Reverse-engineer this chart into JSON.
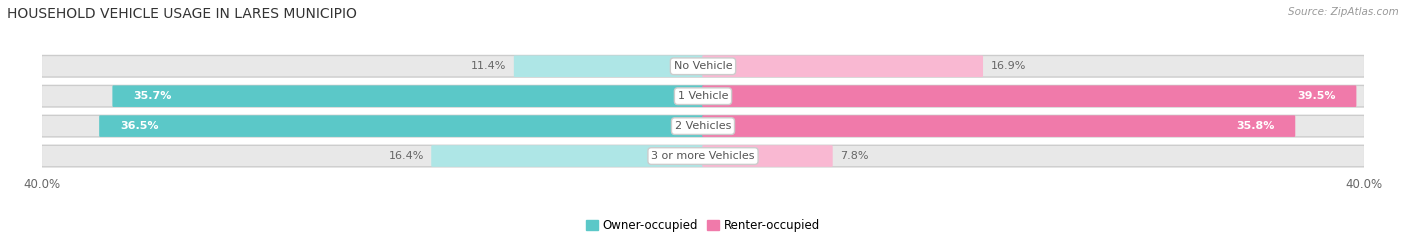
{
  "title": "HOUSEHOLD VEHICLE USAGE IN LARES MUNICIPIO",
  "source": "Source: ZipAtlas.com",
  "categories": [
    "No Vehicle",
    "1 Vehicle",
    "2 Vehicles",
    "3 or more Vehicles"
  ],
  "owner_values": [
    11.4,
    35.7,
    36.5,
    16.4
  ],
  "renter_values": [
    16.9,
    39.5,
    35.8,
    7.8
  ],
  "owner_color": "#5bc8c8",
  "renter_color": "#f07aaa",
  "owner_color_light": "#aee6e6",
  "renter_color_light": "#f9b8d2",
  "owner_label": "Owner-occupied",
  "renter_label": "Renter-occupied",
  "axis_max": 40.0,
  "bg_color": "#ffffff",
  "bar_bg_color": "#e8e8e8",
  "bar_border_color": "#cccccc",
  "bar_height": 0.62,
  "title_fontsize": 10,
  "label_fontsize": 8,
  "tick_fontsize": 8.5,
  "value_fontsize": 8
}
